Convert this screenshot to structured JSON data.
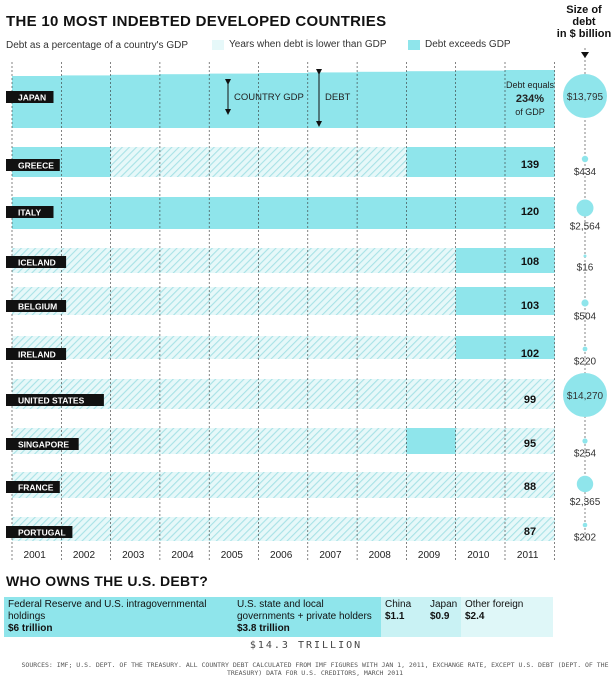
{
  "header": {
    "title": "The 10 most indebted developed countries",
    "subtitle": "Debt as a percentage of a country's GDP",
    "legend_below": "Years when debt is lower than GDP",
    "legend_above": "Debt exceeds GDP",
    "size_title": [
      "Size of",
      "debt",
      "in $ billion"
    ]
  },
  "colors": {
    "above": "#8fe5eb",
    "below_fill": "#e6f8f9",
    "hatch": "#a8e2e6",
    "label_bg": "#111111",
    "grid": "#333333"
  },
  "chart_data": {
    "type": "area",
    "x": [
      "2001",
      "2002",
      "2003",
      "2004",
      "2005",
      "2006",
      "2007",
      "2008",
      "2009",
      "2010",
      "2011"
    ],
    "series": [
      {
        "name": "JAPAN",
        "value_2011": "234%",
        "debt_billion": "$13,795",
        "above_from": 2001
      },
      {
        "name": "GREECE",
        "value_2011": "139",
        "debt_billion": "$434",
        "above_from": 2001,
        "below_years": [
          2003,
          2004,
          2005,
          2006,
          2007,
          2008
        ]
      },
      {
        "name": "ITALY",
        "value_2011": "120",
        "debt_billion": "$2,564",
        "above_from": 2001
      },
      {
        "name": "ICELAND",
        "value_2011": "108",
        "debt_billion": "$16",
        "above_from": 2010
      },
      {
        "name": "BELGIUM",
        "value_2011": "103",
        "debt_billion": "$504",
        "above_from": 2010
      },
      {
        "name": "IRELAND",
        "value_2011": "102",
        "debt_billion": "$220",
        "above_from": 2010
      },
      {
        "name": "UNITED STATES",
        "value_2011": "99",
        "debt_billion": "$14,270",
        "above_from": null
      },
      {
        "name": "SINGAPORE",
        "value_2011": "95",
        "debt_billion": "$254",
        "above_from": null,
        "above_years": [
          2009
        ]
      },
      {
        "name": "FRANCE",
        "value_2011": "88",
        "debt_billion": "$2,365",
        "above_from": null
      },
      {
        "name": "PORTUGAL",
        "value_2011": "87",
        "debt_billion": "$202",
        "above_from": null
      }
    ],
    "annotations": {
      "country_gdp": "COUNTRY GDP",
      "debt": "DEBT",
      "japan_label": [
        "Debt equals",
        "234%",
        "of GDP"
      ]
    }
  },
  "owners": {
    "title": "WHO OWNS THE U.S. DEBT?",
    "items": [
      {
        "label": "Federal Reserve and U.S. intragovernmental holdings",
        "amount": "$6 trillion",
        "share": 6.0
      },
      {
        "label": "U.S. state and local governments + private holders",
        "amount": "$3.8 trillion",
        "share": 3.8
      },
      {
        "label": "China",
        "amount": "$1.1",
        "share": 1.1
      },
      {
        "label": "Japan",
        "amount": "$0.9",
        "share": 0.9
      },
      {
        "label": "Other foreign",
        "amount": "$2.4",
        "share": 2.4
      }
    ],
    "total": "$14.3 TRILLION"
  },
  "sources": "SOURCES: IMF; U.S. DEPT. OF THE TREASURY. ALL COUNTRY DEBT CALCULATED FROM IMF FIGURES WITH JAN 1, 2011, EXCHANGE RATE, EXCEPT U.S. DEBT (DEPT. OF THE TREASURY) DATA FOR U.S. CREDITORS, MARCH 2011"
}
